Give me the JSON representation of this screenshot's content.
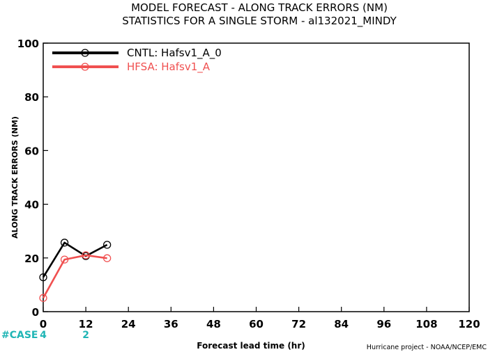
{
  "chart_data": {
    "type": "line",
    "title_line1": "MODEL FORECAST - ALONG TRACK ERRORS (NM)",
    "title_line2": "STATISTICS FOR A SINGLE STORM - al132021_MINDY",
    "xlabel": "Forecast lead time (hr)",
    "ylabel": "ALONG TRACK ERRORS (NM)",
    "xlim": [
      0,
      120
    ],
    "ylim": [
      0,
      100
    ],
    "xticks": [
      "0",
      "12",
      "24",
      "36",
      "48",
      "60",
      "72",
      "84",
      "96",
      "108",
      "120"
    ],
    "yticks": [
      "0",
      "20",
      "40",
      "60",
      "80",
      "100"
    ],
    "legend_position": "top-left",
    "series": [
      {
        "name": "CNTL: Hafsv1_A_0",
        "color": "#000000",
        "x": [
          0,
          6,
          12,
          18
        ],
        "y": [
          12.8,
          25.7,
          20.7,
          24.9
        ]
      },
      {
        "name": "HFSA: Hafsv1_A",
        "color": "#f05050",
        "x": [
          0,
          6,
          12,
          18
        ],
        "y": [
          5.1,
          19.4,
          21.0,
          19.9
        ]
      }
    ],
    "cases": {
      "label": "#CASE",
      "color": "#1fb5b5",
      "entries": [
        {
          "x": 0,
          "value": "4"
        },
        {
          "x": 12,
          "value": "2"
        }
      ]
    },
    "credit": "Hurricane project - NOAA/NCEP/EMC"
  }
}
